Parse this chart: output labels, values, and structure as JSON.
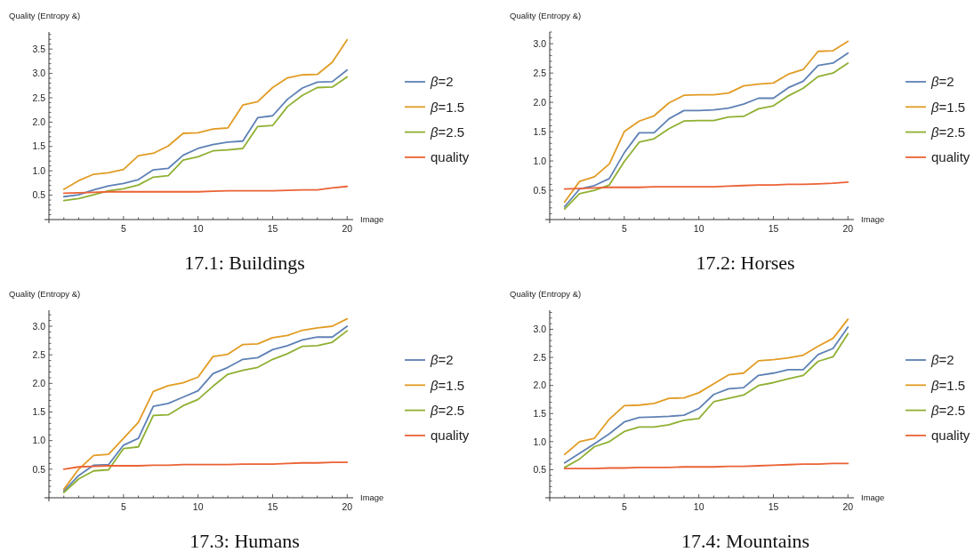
{
  "chart_data": [
    {
      "type": "line",
      "title": "17.1: Buildings",
      "xlabel": "Image",
      "ylabel": "Quality (Entropy &)",
      "legend": "right",
      "x": [
        1,
        2,
        3,
        4,
        5,
        6,
        7,
        8,
        9,
        10,
        11,
        12,
        13,
        14,
        15,
        16,
        17,
        18,
        19,
        20
      ],
      "xlim": [
        0,
        20.4
      ],
      "ylim": [
        0,
        3.85
      ],
      "xticks": [
        {
          "value": 1,
          "label": null
        },
        {
          "value": 2,
          "label": null
        },
        {
          "value": 3,
          "label": null
        },
        {
          "value": 4,
          "label": null
        },
        5,
        {
          "value": 6,
          "label": null
        },
        {
          "value": 7,
          "label": null
        },
        {
          "value": 8,
          "label": null
        },
        {
          "value": 9,
          "label": null
        },
        10,
        {
          "value": 11,
          "label": null
        },
        {
          "value": 12,
          "label": null
        },
        {
          "value": 13,
          "label": null
        },
        {
          "value": 14,
          "label": null
        },
        15,
        {
          "value": 16,
          "label": null
        },
        {
          "value": 17,
          "label": null
        },
        {
          "value": 18,
          "label": null
        },
        {
          "value": 19,
          "label": null
        },
        20
      ],
      "yticks": [
        {
          "value": 0.1,
          "label": null
        },
        {
          "value": 0.2,
          "label": null
        },
        {
          "value": 0.3,
          "label": null
        },
        {
          "value": 0.4,
          "label": null
        },
        0.5,
        {
          "value": 0.6,
          "label": null
        },
        {
          "value": 0.7,
          "label": null
        },
        {
          "value": 0.8,
          "label": null
        },
        {
          "value": 0.9,
          "label": null
        },
        {
          "value": 1,
          "label": "1.0"
        },
        {
          "value": 1.1,
          "label": null
        },
        {
          "value": 1.2,
          "label": null
        },
        {
          "value": 1.3,
          "label": null
        },
        {
          "value": 1.4,
          "label": null
        },
        1.5,
        {
          "value": 1.6,
          "label": null
        },
        {
          "value": 1.7,
          "label": null
        },
        {
          "value": 1.8,
          "label": null
        },
        {
          "value": 1.9,
          "label": null
        },
        {
          "value": 2,
          "label": "2.0"
        },
        {
          "value": 2.1,
          "label": null
        },
        {
          "value": 2.2,
          "label": null
        },
        {
          "value": 2.3,
          "label": null
        },
        {
          "value": 2.4,
          "label": null
        },
        2.5,
        {
          "value": 2.6,
          "label": null
        },
        {
          "value": 2.7,
          "label": null
        },
        {
          "value": 2.8,
          "label": null
        },
        {
          "value": 2.9,
          "label": null
        },
        {
          "value": 3,
          "label": "3.0"
        },
        {
          "value": 3.1,
          "label": null
        },
        {
          "value": 3.2,
          "label": null
        },
        {
          "value": 3.3,
          "label": null
        },
        {
          "value": 3.4,
          "label": null
        },
        3.5,
        {
          "value": 3.6,
          "label": null
        },
        {
          "value": 3.7,
          "label": null
        },
        {
          "value": 3.8,
          "label": null
        }
      ],
      "series": [
        {
          "name": "β=2",
          "color": "#5e81b5",
          "values": [
            0.47,
            0.51,
            0.61,
            0.69,
            0.74,
            0.82,
            1.02,
            1.05,
            1.32,
            1.46,
            1.54,
            1.59,
            1.61,
            2.09,
            2.13,
            2.47,
            2.7,
            2.82,
            2.83,
            3.07
          ]
        },
        {
          "name": "β=1.5",
          "color": "#e19c24",
          "values": [
            0.62,
            0.8,
            0.93,
            0.96,
            1.03,
            1.31,
            1.36,
            1.51,
            1.77,
            1.78,
            1.86,
            1.88,
            2.35,
            2.42,
            2.71,
            2.91,
            2.97,
            2.98,
            3.23,
            3.69
          ]
        },
        {
          "name": "β=2.5",
          "color": "#8fb032",
          "values": [
            0.39,
            0.43,
            0.51,
            0.59,
            0.63,
            0.71,
            0.87,
            0.9,
            1.22,
            1.29,
            1.41,
            1.43,
            1.46,
            1.91,
            1.93,
            2.32,
            2.55,
            2.71,
            2.72,
            2.93
          ]
        },
        {
          "name": "quality",
          "color": "#eb6235",
          "values": [
            0.54,
            0.55,
            0.56,
            0.57,
            0.57,
            0.57,
            0.57,
            0.57,
            0.57,
            0.57,
            0.58,
            0.59,
            0.59,
            0.59,
            0.59,
            0.6,
            0.61,
            0.61,
            0.65,
            0.68
          ]
        }
      ]
    },
    {
      "type": "line",
      "title": "17.2: Horses",
      "xlabel": "Image",
      "ylabel": "Quality (Entropy &)",
      "legend": "right",
      "x": [
        1,
        2,
        3,
        4,
        5,
        6,
        7,
        8,
        9,
        10,
        11,
        12,
        13,
        14,
        15,
        16,
        17,
        18,
        19,
        20
      ],
      "xlim": [
        0,
        20.4
      ],
      "ylim": [
        0,
        3.2
      ],
      "xticks": [
        {
          "value": 1,
          "label": null
        },
        {
          "value": 2,
          "label": null
        },
        {
          "value": 3,
          "label": null
        },
        {
          "value": 4,
          "label": null
        },
        5,
        {
          "value": 6,
          "label": null
        },
        {
          "value": 7,
          "label": null
        },
        {
          "value": 8,
          "label": null
        },
        {
          "value": 9,
          "label": null
        },
        10,
        {
          "value": 11,
          "label": null
        },
        {
          "value": 12,
          "label": null
        },
        {
          "value": 13,
          "label": null
        },
        {
          "value": 14,
          "label": null
        },
        15,
        {
          "value": 16,
          "label": null
        },
        {
          "value": 17,
          "label": null
        },
        {
          "value": 18,
          "label": null
        },
        {
          "value": 19,
          "label": null
        },
        20
      ],
      "yticks": [
        {
          "value": 0.1,
          "label": null
        },
        {
          "value": 0.2,
          "label": null
        },
        {
          "value": 0.3,
          "label": null
        },
        {
          "value": 0.4,
          "label": null
        },
        0.5,
        {
          "value": 0.6,
          "label": null
        },
        {
          "value": 0.7,
          "label": null
        },
        {
          "value": 0.8,
          "label": null
        },
        {
          "value": 0.9,
          "label": null
        },
        {
          "value": 1,
          "label": "1.0"
        },
        {
          "value": 1.1,
          "label": null
        },
        {
          "value": 1.2,
          "label": null
        },
        {
          "value": 1.3,
          "label": null
        },
        {
          "value": 1.4,
          "label": null
        },
        1.5,
        {
          "value": 1.6,
          "label": null
        },
        {
          "value": 1.7,
          "label": null
        },
        {
          "value": 1.8,
          "label": null
        },
        {
          "value": 1.9,
          "label": null
        },
        {
          "value": 2,
          "label": "2.0"
        },
        {
          "value": 2.1,
          "label": null
        },
        {
          "value": 2.2,
          "label": null
        },
        {
          "value": 2.3,
          "label": null
        },
        {
          "value": 2.4,
          "label": null
        },
        2.5,
        {
          "value": 2.6,
          "label": null
        },
        {
          "value": 2.7,
          "label": null
        },
        {
          "value": 2.8,
          "label": null
        },
        {
          "value": 2.9,
          "label": null
        },
        {
          "value": 3,
          "label": "3.0"
        },
        {
          "value": 3.1,
          "label": null
        },
        {
          "value": 3.2,
          "label": null
        }
      ],
      "series": [
        {
          "name": "β=2",
          "color": "#5e81b5",
          "values": [
            0.22,
            0.52,
            0.58,
            0.7,
            1.14,
            1.48,
            1.48,
            1.72,
            1.86,
            1.86,
            1.87,
            1.9,
            1.97,
            2.07,
            2.07,
            2.25,
            2.36,
            2.63,
            2.67,
            2.84
          ]
        },
        {
          "name": "β=1.5",
          "color": "#e19c24",
          "values": [
            0.3,
            0.65,
            0.73,
            0.95,
            1.5,
            1.68,
            1.77,
            1.99,
            2.12,
            2.13,
            2.13,
            2.16,
            2.28,
            2.31,
            2.33,
            2.48,
            2.56,
            2.87,
            2.88,
            3.04
          ]
        },
        {
          "name": "β=2.5",
          "color": "#8fb032",
          "values": [
            0.18,
            0.44,
            0.5,
            0.59,
            0.99,
            1.32,
            1.38,
            1.55,
            1.68,
            1.69,
            1.69,
            1.75,
            1.76,
            1.89,
            1.94,
            2.11,
            2.24,
            2.44,
            2.5,
            2.67
          ]
        },
        {
          "name": "quality",
          "color": "#eb6235",
          "values": [
            0.52,
            0.53,
            0.54,
            0.55,
            0.55,
            0.55,
            0.56,
            0.56,
            0.56,
            0.56,
            0.56,
            0.57,
            0.58,
            0.59,
            0.59,
            0.6,
            0.6,
            0.61,
            0.62,
            0.64
          ]
        }
      ]
    },
    {
      "type": "line",
      "title": "17.3: Humans",
      "xlabel": "Image",
      "ylabel": "Quality (Entropy &)",
      "legend": "right",
      "x": [
        1,
        2,
        3,
        4,
        5,
        6,
        7,
        8,
        9,
        10,
        11,
        12,
        13,
        14,
        15,
        16,
        17,
        18,
        19,
        20
      ],
      "xlim": [
        0,
        20.4
      ],
      "ylim": [
        0,
        3.28
      ],
      "xticks": [
        {
          "value": 1,
          "label": null
        },
        {
          "value": 2,
          "label": null
        },
        {
          "value": 3,
          "label": null
        },
        {
          "value": 4,
          "label": null
        },
        5,
        {
          "value": 6,
          "label": null
        },
        {
          "value": 7,
          "label": null
        },
        {
          "value": 8,
          "label": null
        },
        {
          "value": 9,
          "label": null
        },
        10,
        {
          "value": 11,
          "label": null
        },
        {
          "value": 12,
          "label": null
        },
        {
          "value": 13,
          "label": null
        },
        {
          "value": 14,
          "label": null
        },
        15,
        {
          "value": 16,
          "label": null
        },
        {
          "value": 17,
          "label": null
        },
        {
          "value": 18,
          "label": null
        },
        {
          "value": 19,
          "label": null
        },
        20
      ],
      "yticks": [
        {
          "value": 0.1,
          "label": null
        },
        {
          "value": 0.2,
          "label": null
        },
        {
          "value": 0.3,
          "label": null
        },
        {
          "value": 0.4,
          "label": null
        },
        0.5,
        {
          "value": 0.6,
          "label": null
        },
        {
          "value": 0.7,
          "label": null
        },
        {
          "value": 0.8,
          "label": null
        },
        {
          "value": 0.9,
          "label": null
        },
        {
          "value": 1,
          "label": "1.0"
        },
        {
          "value": 1.1,
          "label": null
        },
        {
          "value": 1.2,
          "label": null
        },
        {
          "value": 1.3,
          "label": null
        },
        {
          "value": 1.4,
          "label": null
        },
        1.5,
        {
          "value": 1.6,
          "label": null
        },
        {
          "value": 1.7,
          "label": null
        },
        {
          "value": 1.8,
          "label": null
        },
        {
          "value": 1.9,
          "label": null
        },
        {
          "value": 2,
          "label": "2.0"
        },
        {
          "value": 2.1,
          "label": null
        },
        {
          "value": 2.2,
          "label": null
        },
        {
          "value": 2.3,
          "label": null
        },
        {
          "value": 2.4,
          "label": null
        },
        2.5,
        {
          "value": 2.6,
          "label": null
        },
        {
          "value": 2.7,
          "label": null
        },
        {
          "value": 2.8,
          "label": null
        },
        {
          "value": 2.9,
          "label": null
        },
        {
          "value": 3,
          "label": "3.0"
        },
        {
          "value": 3.1,
          "label": null
        },
        {
          "value": 3.2,
          "label": null
        }
      ],
      "series": [
        {
          "name": "β=2",
          "color": "#5e81b5",
          "values": [
            0.12,
            0.39,
            0.57,
            0.58,
            0.92,
            1.04,
            1.6,
            1.65,
            1.76,
            1.87,
            2.17,
            2.28,
            2.42,
            2.45,
            2.59,
            2.66,
            2.76,
            2.81,
            2.81,
            3.0
          ]
        },
        {
          "name": "β=1.5",
          "color": "#e19c24",
          "values": [
            0.15,
            0.5,
            0.74,
            0.76,
            1.04,
            1.32,
            1.86,
            1.96,
            2.01,
            2.11,
            2.47,
            2.51,
            2.68,
            2.69,
            2.8,
            2.84,
            2.93,
            2.97,
            3.0,
            3.13
          ]
        },
        {
          "name": "β=2.5",
          "color": "#8fb032",
          "values": [
            0.09,
            0.33,
            0.47,
            0.49,
            0.86,
            0.89,
            1.44,
            1.45,
            1.61,
            1.72,
            1.95,
            2.16,
            2.23,
            2.28,
            2.42,
            2.52,
            2.65,
            2.66,
            2.72,
            2.92
          ]
        },
        {
          "name": "quality",
          "color": "#eb6235",
          "values": [
            0.5,
            0.54,
            0.55,
            0.56,
            0.56,
            0.56,
            0.57,
            0.57,
            0.58,
            0.58,
            0.58,
            0.58,
            0.59,
            0.59,
            0.59,
            0.6,
            0.61,
            0.61,
            0.62,
            0.62
          ]
        }
      ]
    },
    {
      "type": "line",
      "title": "17.4: Mountains",
      "xlabel": "Image",
      "ylabel": "Quality (Entropy &)",
      "legend": "right",
      "x": [
        1,
        2,
        3,
        4,
        5,
        6,
        7,
        8,
        9,
        10,
        11,
        12,
        13,
        14,
        15,
        16,
        17,
        18,
        19,
        20
      ],
      "xlim": [
        0,
        20.4
      ],
      "ylim": [
        0,
        3.34
      ],
      "xticks": [
        {
          "value": 1,
          "label": null
        },
        {
          "value": 2,
          "label": null
        },
        {
          "value": 3,
          "label": null
        },
        {
          "value": 4,
          "label": null
        },
        5,
        {
          "value": 6,
          "label": null
        },
        {
          "value": 7,
          "label": null
        },
        {
          "value": 8,
          "label": null
        },
        {
          "value": 9,
          "label": null
        },
        10,
        {
          "value": 11,
          "label": null
        },
        {
          "value": 12,
          "label": null
        },
        {
          "value": 13,
          "label": null
        },
        {
          "value": 14,
          "label": null
        },
        15,
        {
          "value": 16,
          "label": null
        },
        {
          "value": 17,
          "label": null
        },
        {
          "value": 18,
          "label": null
        },
        {
          "value": 19,
          "label": null
        },
        20
      ],
      "yticks": [
        {
          "value": 0.1,
          "label": null
        },
        {
          "value": 0.2,
          "label": null
        },
        {
          "value": 0.3,
          "label": null
        },
        {
          "value": 0.4,
          "label": null
        },
        0.5,
        {
          "value": 0.6,
          "label": null
        },
        {
          "value": 0.7,
          "label": null
        },
        {
          "value": 0.8,
          "label": null
        },
        {
          "value": 0.9,
          "label": null
        },
        {
          "value": 1,
          "label": "1.0"
        },
        {
          "value": 1.1,
          "label": null
        },
        {
          "value": 1.2,
          "label": null
        },
        {
          "value": 1.3,
          "label": null
        },
        {
          "value": 1.4,
          "label": null
        },
        1.5,
        {
          "value": 1.6,
          "label": null
        },
        {
          "value": 1.7,
          "label": null
        },
        {
          "value": 1.8,
          "label": null
        },
        {
          "value": 1.9,
          "label": null
        },
        {
          "value": 2,
          "label": "2.0"
        },
        {
          "value": 2.1,
          "label": null
        },
        {
          "value": 2.2,
          "label": null
        },
        {
          "value": 2.3,
          "label": null
        },
        {
          "value": 2.4,
          "label": null
        },
        2.5,
        {
          "value": 2.6,
          "label": null
        },
        {
          "value": 2.7,
          "label": null
        },
        {
          "value": 2.8,
          "label": null
        },
        {
          "value": 2.9,
          "label": null
        },
        {
          "value": 3,
          "label": "3.0"
        },
        {
          "value": 3.1,
          "label": null
        },
        {
          "value": 3.2,
          "label": null
        },
        {
          "value": 3.3,
          "label": null
        }
      ],
      "series": [
        {
          "name": "β=2",
          "color": "#5e81b5",
          "values": [
            0.62,
            0.79,
            0.96,
            1.14,
            1.35,
            1.43,
            1.44,
            1.45,
            1.47,
            1.59,
            1.84,
            1.94,
            1.96,
            2.18,
            2.22,
            2.28,
            2.28,
            2.55,
            2.66,
            3.04
          ]
        },
        {
          "name": "β=1.5",
          "color": "#e19c24",
          "values": [
            0.77,
            1.0,
            1.06,
            1.4,
            1.64,
            1.65,
            1.68,
            1.77,
            1.78,
            1.87,
            2.03,
            2.19,
            2.22,
            2.44,
            2.46,
            2.49,
            2.54,
            2.7,
            2.84,
            3.18
          ]
        },
        {
          "name": "β=2.5",
          "color": "#8fb032",
          "values": [
            0.54,
            0.69,
            0.91,
            1.0,
            1.18,
            1.26,
            1.26,
            1.3,
            1.38,
            1.41,
            1.71,
            1.77,
            1.83,
            2.0,
            2.05,
            2.12,
            2.18,
            2.43,
            2.51,
            2.92
          ]
        },
        {
          "name": "quality",
          "color": "#eb6235",
          "values": [
            0.52,
            0.52,
            0.52,
            0.53,
            0.53,
            0.54,
            0.54,
            0.54,
            0.55,
            0.55,
            0.55,
            0.56,
            0.56,
            0.57,
            0.58,
            0.59,
            0.6,
            0.6,
            0.61,
            0.61
          ]
        }
      ]
    }
  ]
}
